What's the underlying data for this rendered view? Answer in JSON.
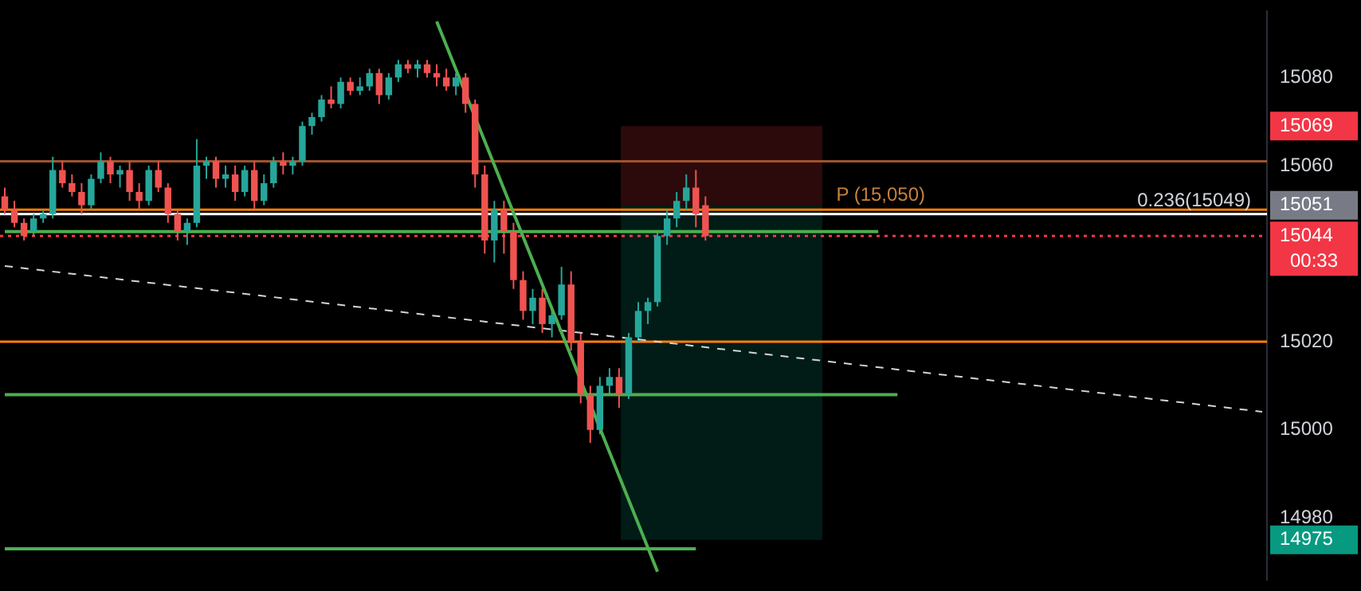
{
  "chart_data": {
    "type": "candlestick",
    "categories": [
      null,
      null,
      null,
      null,
      null,
      null,
      null,
      null,
      null,
      null,
      null,
      null,
      null,
      null,
      null,
      null,
      null,
      null,
      null,
      null,
      null,
      null,
      null,
      null,
      null,
      null,
      null,
      null,
      null,
      null,
      null,
      null,
      null,
      null,
      null,
      null,
      null,
      null,
      null,
      null,
      null,
      null,
      null,
      null,
      null,
      null,
      null,
      null,
      null,
      null,
      null,
      null,
      null,
      null,
      null,
      null,
      null,
      null,
      null,
      null,
      null,
      null,
      null,
      null,
      null,
      null,
      null,
      null,
      null,
      null,
      null,
      null,
      null,
      null,
      null,
      null,
      null,
      null,
      null,
      null,
      null,
      null,
      null,
      null,
      null,
      null,
      null,
      null,
      null,
      null,
      null,
      null,
      null,
      null,
      null,
      null,
      null,
      null,
      null,
      null,
      null,
      null,
      null,
      null,
      null,
      null,
      null,
      null,
      null,
      null,
      null,
      null,
      null,
      null,
      null,
      null,
      null,
      null,
      null,
      null,
      null,
      null,
      null,
      null,
      null,
      null,
      null,
      null,
      null,
      null,
      null,
      null
    ],
    "ohlc": [
      [
        15053,
        15055,
        15049,
        15050
      ],
      [
        15050,
        15052,
        15046,
        15047
      ],
      [
        15047,
        15048,
        15043,
        15044
      ],
      [
        15045,
        15049,
        15044,
        15048
      ],
      [
        15048,
        15050,
        15047,
        15049
      ],
      [
        15049,
        15062,
        15048,
        15059
      ],
      [
        15059,
        15061,
        15055,
        15056
      ],
      [
        15056,
        15058,
        15053,
        15054
      ],
      [
        15054,
        15056,
        15049,
        15051
      ],
      [
        15051,
        15058,
        15050,
        15057
      ],
      [
        15057,
        15063,
        15056,
        15061
      ],
      [
        15061,
        15062,
        15056,
        15058
      ],
      [
        15058,
        15060,
        15055,
        15059
      ],
      [
        15059,
        15061,
        15052,
        15054
      ],
      [
        15054,
        15056,
        15050,
        15052
      ],
      [
        15052,
        15060,
        15051,
        15059
      ],
      [
        15059,
        15061,
        15054,
        15055
      ],
      [
        15055,
        15056,
        15047,
        15049
      ],
      [
        15049,
        15050,
        15043,
        15045
      ],
      [
        15045,
        15048,
        15042,
        15047
      ],
      [
        15047,
        15066,
        15046,
        15060
      ],
      [
        15060,
        15062,
        15057,
        15061
      ],
      [
        15061,
        15062,
        15055,
        15057
      ],
      [
        15057,
        15060,
        15055,
        15058
      ],
      [
        15058,
        15060,
        15052,
        15054
      ],
      [
        15054,
        15060,
        15053,
        15059
      ],
      [
        15059,
        15061,
        15050,
        15052
      ],
      [
        15052,
        15058,
        15051,
        15056
      ],
      [
        15056,
        15062,
        15055,
        15061
      ],
      [
        15061,
        15063,
        15058,
        15060
      ],
      [
        15060,
        15062,
        15058,
        15061
      ],
      [
        15061,
        15070,
        15060,
        15069
      ],
      [
        15069,
        15072,
        15067,
        15071
      ],
      [
        15071,
        15076,
        15070,
        15075
      ],
      [
        15075,
        15078,
        15073,
        15074
      ],
      [
        15074,
        15080,
        15073,
        15079
      ],
      [
        15079,
        15080,
        15076,
        15077
      ],
      [
        15077,
        15080,
        15076,
        15078
      ],
      [
        15078,
        15082,
        15077,
        15081
      ],
      [
        15081,
        15082,
        15074,
        15076
      ],
      [
        15076,
        15081,
        15075,
        15080
      ],
      [
        15080,
        15084,
        15079,
        15083
      ],
      [
        15083,
        15084,
        15081,
        15082
      ],
      [
        15082,
        15084,
        15080,
        15083
      ],
      [
        15083,
        15084,
        15080,
        15081
      ],
      [
        15081,
        15083,
        15078,
        15080
      ],
      [
        15080,
        15082,
        15077,
        15078
      ],
      [
        15078,
        15081,
        15076,
        15080
      ],
      [
        15080,
        15081,
        15072,
        15074
      ],
      [
        15074,
        15075,
        15055,
        15058
      ],
      [
        15058,
        15060,
        15040,
        15043
      ],
      [
        15043,
        15052,
        15038,
        15050
      ],
      [
        15050,
        15052,
        15040,
        15045
      ],
      [
        15045,
        15047,
        15032,
        15034
      ],
      [
        15034,
        15036,
        15025,
        15027
      ],
      [
        15027,
        15032,
        15024,
        15030
      ],
      [
        15030,
        15032,
        15022,
        15024
      ],
      [
        15024,
        15028,
        15021,
        15026
      ],
      [
        15026,
        15037,
        15025,
        15033
      ],
      [
        15033,
        15036,
        15018,
        15020
      ],
      [
        15020,
        15022,
        15006,
        15008
      ],
      [
        15008,
        15010,
        14997,
        15000
      ],
      [
        15000,
        15012,
        14999,
        15010
      ],
      [
        15010,
        15014,
        15008,
        15012
      ],
      [
        15012,
        15014,
        15005,
        15008
      ],
      [
        15008,
        15022,
        15007,
        15021
      ],
      [
        15021,
        15029,
        15020,
        15027
      ],
      [
        15027,
        15030,
        15024,
        15029
      ],
      [
        15029,
        15045,
        15028,
        15044
      ],
      [
        15044,
        15050,
        15042,
        15048
      ],
      [
        15048,
        15054,
        15046,
        15052
      ],
      [
        15052,
        15058,
        15050,
        15055
      ],
      [
        15055,
        15059,
        15046,
        15049
      ],
      [
        15051,
        15053,
        15043,
        15044
      ],
      null,
      null,
      null,
      null,
      null,
      null,
      null,
      null,
      null,
      null,
      null,
      null,
      null,
      null,
      null,
      null,
      null,
      null,
      null,
      null,
      null,
      null,
      null,
      null,
      null,
      null,
      null,
      null,
      null,
      null,
      null,
      null,
      null,
      null,
      null,
      null,
      null,
      null,
      null,
      null,
      null,
      null,
      null,
      null,
      null,
      null,
      null,
      null,
      null,
      null,
      null,
      null,
      null,
      null,
      null,
      null,
      null,
      null
    ],
    "colors": [
      "#ef5350",
      "#ef5350",
      "#ef5350",
      "#26a69a",
      "#26a69a",
      "#26a69a",
      "#ef5350",
      "#ef5350",
      "#ef5350",
      "#26a69a",
      "#26a69a",
      "#ef5350",
      "#26a69a",
      "#ef5350",
      "#ef5350",
      "#26a69a",
      "#ef5350",
      "#ef5350",
      "#ef5350",
      "#26a69a",
      "#26a69a",
      "#26a69a",
      "#ef5350",
      "#26a69a",
      "#ef5350",
      "#26a69a",
      "#ef5350",
      "#26a69a",
      "#26a69a",
      "#ef5350",
      "#26a69a",
      "#26a69a",
      "#26a69a",
      "#26a69a",
      "#ef5350",
      "#26a69a",
      "#ef5350",
      "#26a69a",
      "#26a69a",
      "#ef5350",
      "#26a69a",
      "#26a69a",
      "#ef5350",
      "#26a69a",
      "#ef5350",
      "#ef5350",
      "#ef5350",
      "#26a69a",
      "#ef5350",
      "#ef5350",
      "#ef5350",
      "#26a69a",
      "#ef5350",
      "#ef5350",
      "#ef5350",
      "#26a69a",
      "#ef5350",
      "#26a69a",
      "#26a69a",
      "#ef5350",
      "#ef5350",
      "#ef5350",
      "#26a69a",
      "#26a69a",
      "#ef5350",
      "#26a69a",
      "#26a69a",
      "#26a69a",
      "#26a69a",
      "#26a69a",
      "#26a69a",
      "#26a69a",
      "#ef5350",
      "#ef5350",
      null,
      null,
      null,
      null,
      null,
      null,
      null,
      null,
      null,
      null,
      null,
      null,
      null,
      null,
      null,
      null,
      null,
      null,
      null,
      null,
      null,
      null,
      null,
      null,
      null,
      null,
      null,
      null,
      null,
      null,
      null,
      null,
      null,
      null,
      null,
      null,
      null,
      null,
      null,
      null,
      null,
      null,
      null,
      null,
      null,
      null,
      null,
      null,
      null,
      null,
      null,
      null,
      null,
      null,
      null,
      null,
      null,
      null
    ],
    "series": [
      {
        "type": "line",
        "color": "#4caf50",
        "values": [
          null,
          null,
          null,
          null,
          null,
          null,
          null,
          null,
          null,
          null,
          null,
          null,
          null,
          null,
          null,
          null,
          null,
          null,
          null,
          null,
          null,
          null,
          null,
          null,
          null,
          null,
          null,
          null,
          null,
          null,
          null,
          null,
          null,
          null,
          null,
          null,
          null,
          null,
          null,
          null,
          null,
          null,
          null,
          null,
          null,
          15092.7,
          null,
          null,
          null,
          null,
          null,
          null,
          null,
          null,
          null,
          null,
          null,
          null,
          null,
          null,
          null,
          null,
          null,
          null,
          null,
          null,
          null,
          null,
          14967.8,
          null,
          null,
          null,
          null,
          null,
          null,
          null,
          null,
          null,
          null,
          null,
          null,
          null,
          null,
          null,
          null,
          null,
          null,
          null,
          null,
          null,
          null,
          null,
          null,
          null,
          null,
          null,
          null,
          null,
          null,
          null,
          null,
          null,
          null,
          null,
          null,
          null,
          null,
          null,
          null,
          null,
          null,
          null,
          null,
          null,
          null,
          null,
          null,
          null,
          null,
          null,
          null,
          null,
          null,
          null,
          null,
          null,
          null,
          null,
          null,
          null,
          null,
          null
        ]
      },
      {
        "type": "line",
        "color": "#d1d4dc",
        "line_style": "dashed",
        "values": [
          15037.2,
          null,
          null,
          null,
          null,
          null,
          null,
          null,
          null,
          null,
          null,
          null,
          null,
          null,
          null,
          null,
          null,
          null,
          null,
          null,
          null,
          null,
          null,
          null,
          null,
          null,
          null,
          null,
          null,
          null,
          null,
          null,
          null,
          null,
          null,
          null,
          null,
          null,
          null,
          null,
          null,
          null,
          null,
          null,
          null,
          null,
          null,
          null,
          null,
          null,
          null,
          null,
          null,
          null,
          null,
          null,
          null,
          null,
          null,
          null,
          null,
          null,
          null,
          null,
          null,
          null,
          null,
          null,
          null,
          null,
          null,
          null,
          null,
          null,
          null,
          null,
          null,
          null,
          null,
          null,
          null,
          null,
          null,
          null,
          null,
          null,
          null,
          null,
          null,
          null,
          null,
          null,
          null,
          null,
          null,
          null,
          null,
          null,
          null,
          null,
          null,
          null,
          null,
          null,
          null,
          null,
          null,
          null,
          null,
          null,
          null,
          null,
          null,
          null,
          null,
          null,
          null,
          null,
          null,
          null,
          null,
          null,
          null,
          null,
          null,
          null,
          null,
          null,
          null,
          null,
          null,
          15004.1
        ]
      },
      {
        "type": "line",
        "color": "#4caf50",
        "values": [
          15045,
          null,
          null,
          null,
          null,
          null,
          null,
          null,
          null,
          null,
          null,
          null,
          null,
          null,
          null,
          null,
          null,
          null,
          null,
          null,
          null,
          null,
          null,
          null,
          null,
          null,
          null,
          null,
          null,
          null,
          null,
          null,
          null,
          null,
          null,
          null,
          null,
          null,
          null,
          null,
          null,
          null,
          null,
          null,
          null,
          null,
          null,
          null,
          null,
          null,
          null,
          null,
          null,
          null,
          null,
          null,
          null,
          null,
          null,
          null,
          null,
          null,
          null,
          null,
          null,
          null,
          null,
          null,
          null,
          null,
          null,
          null,
          null,
          null,
          null,
          null,
          null,
          null,
          null,
          null,
          null,
          null,
          null,
          null,
          null,
          null,
          null,
          null,
          null,
          null,
          null,
          15045,
          null,
          null,
          null,
          null,
          null,
          null,
          null,
          null,
          null,
          null,
          null,
          null,
          null,
          null,
          null,
          null,
          null,
          null,
          null,
          null,
          null,
          null,
          null,
          null,
          null,
          null,
          null,
          null,
          null,
          null,
          null,
          null,
          null,
          null,
          null,
          null,
          null,
          null,
          null,
          null
        ]
      },
      {
        "type": "line",
        "color": "#4caf50",
        "values": [
          15008,
          null,
          null,
          null,
          null,
          null,
          null,
          null,
          null,
          null,
          null,
          null,
          null,
          null,
          null,
          null,
          null,
          null,
          null,
          null,
          null,
          null,
          null,
          null,
          null,
          null,
          null,
          null,
          null,
          null,
          null,
          null,
          null,
          null,
          null,
          null,
          null,
          null,
          null,
          null,
          null,
          null,
          null,
          null,
          null,
          null,
          null,
          null,
          null,
          null,
          null,
          null,
          null,
          null,
          null,
          null,
          null,
          null,
          null,
          null,
          null,
          null,
          null,
          null,
          null,
          null,
          null,
          null,
          null,
          null,
          null,
          null,
          null,
          null,
          null,
          null,
          null,
          null,
          null,
          null,
          null,
          null,
          null,
          null,
          null,
          null,
          null,
          null,
          null,
          null,
          null,
          null,
          null,
          15008,
          null,
          null,
          null,
          null,
          null,
          null,
          null,
          null,
          null,
          null,
          null,
          null,
          null,
          null,
          null,
          null,
          null,
          null,
          null,
          null,
          null,
          null,
          null,
          null,
          null,
          null,
          null,
          null,
          null,
          null,
          null,
          null,
          null,
          null,
          null,
          null,
          null,
          null
        ]
      },
      {
        "type": "line",
        "color": "#4caf50",
        "values": [
          14973,
          null,
          null,
          null,
          null,
          null,
          null,
          null,
          null,
          null,
          null,
          null,
          null,
          null,
          null,
          null,
          null,
          null,
          null,
          null,
          null,
          null,
          null,
          null,
          null,
          null,
          null,
          null,
          null,
          null,
          null,
          null,
          null,
          null,
          null,
          null,
          null,
          null,
          null,
          null,
          null,
          null,
          null,
          null,
          null,
          null,
          null,
          null,
          null,
          null,
          null,
          null,
          null,
          null,
          null,
          null,
          null,
          null,
          null,
          null,
          null,
          null,
          null,
          null,
          null,
          null,
          null,
          null,
          null,
          null,
          null,
          null,
          14973,
          null,
          null,
          null,
          null,
          null,
          null,
          null,
          null,
          null,
          null,
          null,
          null,
          null,
          null,
          null,
          null,
          null,
          null,
          null,
          null,
          null,
          null,
          null,
          null,
          null,
          null,
          null,
          null,
          null,
          null,
          null,
          null,
          null,
          null,
          null,
          null,
          null,
          null,
          null,
          null,
          null,
          null,
          null,
          null,
          null,
          null,
          null,
          null,
          null,
          null,
          null,
          null,
          null,
          null,
          null,
          null,
          null,
          null,
          null
        ]
      }
    ],
    "ylim": [
      14966,
      15095
    ],
    "yticks": [
      14975,
      14980,
      15000,
      15020,
      15044,
      15051,
      15060,
      15069,
      15080
    ],
    "tick_labels": "y",
    "ref_lines": [
      {
        "axis": "y",
        "value": 15061,
        "color": "#a0522d"
      },
      {
        "axis": "y",
        "value": 15050,
        "color": "#f57c00"
      },
      {
        "axis": "y",
        "value": 15049,
        "color": "#ffffff",
        "label": "0.236(15049)"
      },
      {
        "axis": "y",
        "value": 15044,
        "color": "#f23645",
        "line_style": "dotted"
      },
      {
        "axis": "y",
        "value": 15020,
        "color": "#ff7f0e"
      }
    ],
    "bands": [
      {
        "axis": "y",
        "from": 15051,
        "to": 15069,
        "color": "#f23645"
      },
      {
        "axis": "y",
        "from": 14975,
        "to": 15051,
        "color": "#089981"
      }
    ],
    "annotations": [
      {
        "text": "P (15,050)",
        "y": 15050
      },
      "00:33"
    ]
  }
}
